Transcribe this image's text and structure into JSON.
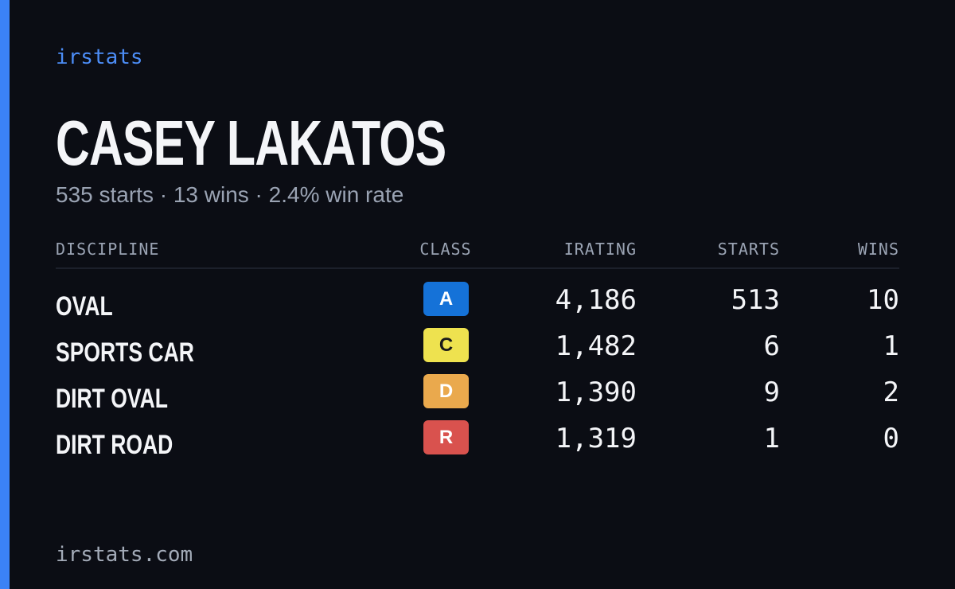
{
  "brand": "irstats",
  "driver": {
    "name": "CASEY LAKATOS",
    "summary": "535 starts · 13 wins · 2.4% win rate"
  },
  "table": {
    "header": [
      "DISCIPLINE",
      "CLASS",
      "IRATING",
      "STARTS",
      "WINS"
    ],
    "rows": [
      {
        "discipline": "OVAL",
        "class": "A",
        "badge_color": "#1572d8",
        "badge_text_color": "#ffffff",
        "irating": "4,186",
        "starts": "513",
        "wins": "10"
      },
      {
        "discipline": "SPORTS CAR",
        "class": "C",
        "badge_color": "#eee24f",
        "badge_text_color": "#1a1a1a",
        "irating": "1,482",
        "starts": "6",
        "wins": "1"
      },
      {
        "discipline": "DIRT OVAL",
        "class": "D",
        "badge_color": "#eaa94d",
        "badge_text_color": "#ffffff",
        "irating": "1,390",
        "starts": "9",
        "wins": "2"
      },
      {
        "discipline": "DIRT ROAD",
        "class": "R",
        "badge_color": "#d9524e",
        "badge_text_color": "#ffffff",
        "irating": "1,319",
        "starts": "1",
        "wins": "0"
      }
    ]
  },
  "footer": "irstats.com"
}
